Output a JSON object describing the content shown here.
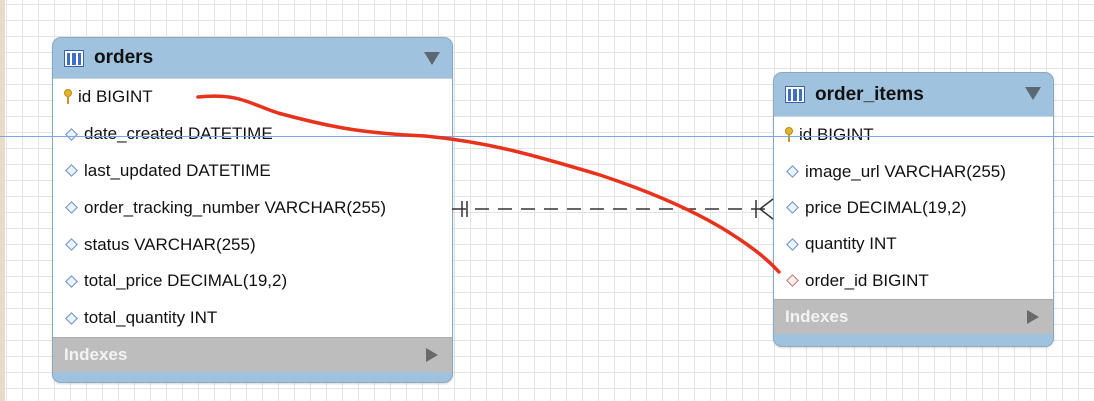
{
  "orders": {
    "title": "orders",
    "columns": [
      {
        "label": "id BIGINT",
        "kind": "primary-key"
      },
      {
        "label": "date_created DATETIME",
        "kind": "column"
      },
      {
        "label": "last_updated DATETIME",
        "kind": "column"
      },
      {
        "label": "order_tracking_number VARCHAR(255)",
        "kind": "column"
      },
      {
        "label": "status VARCHAR(255)",
        "kind": "column"
      },
      {
        "label": "total_price DECIMAL(19,2)",
        "kind": "column"
      },
      {
        "label": "total_quantity INT",
        "kind": "column"
      }
    ],
    "indexes_label": "Indexes"
  },
  "order_items": {
    "title": "order_items",
    "columns": [
      {
        "label": "id BIGINT",
        "kind": "primary-key"
      },
      {
        "label": "image_url VARCHAR(255)",
        "kind": "column"
      },
      {
        "label": "price DECIMAL(19,2)",
        "kind": "column"
      },
      {
        "label": "quantity INT",
        "kind": "column"
      },
      {
        "label": "order_id BIGINT",
        "kind": "foreign-key"
      }
    ],
    "indexes_label": "Indexes"
  },
  "relationship": {
    "type": "one-to-many",
    "from": "orders",
    "to": "order_items",
    "line_style": "dashed"
  },
  "annotation": {
    "from": "orders.id",
    "to": "order_items.order_id",
    "color": "#e8321c"
  },
  "colors": {
    "table_header": "#9fc3de",
    "indexes_bar": "#bdbdbd",
    "guide_line": "#7ea6e0"
  }
}
